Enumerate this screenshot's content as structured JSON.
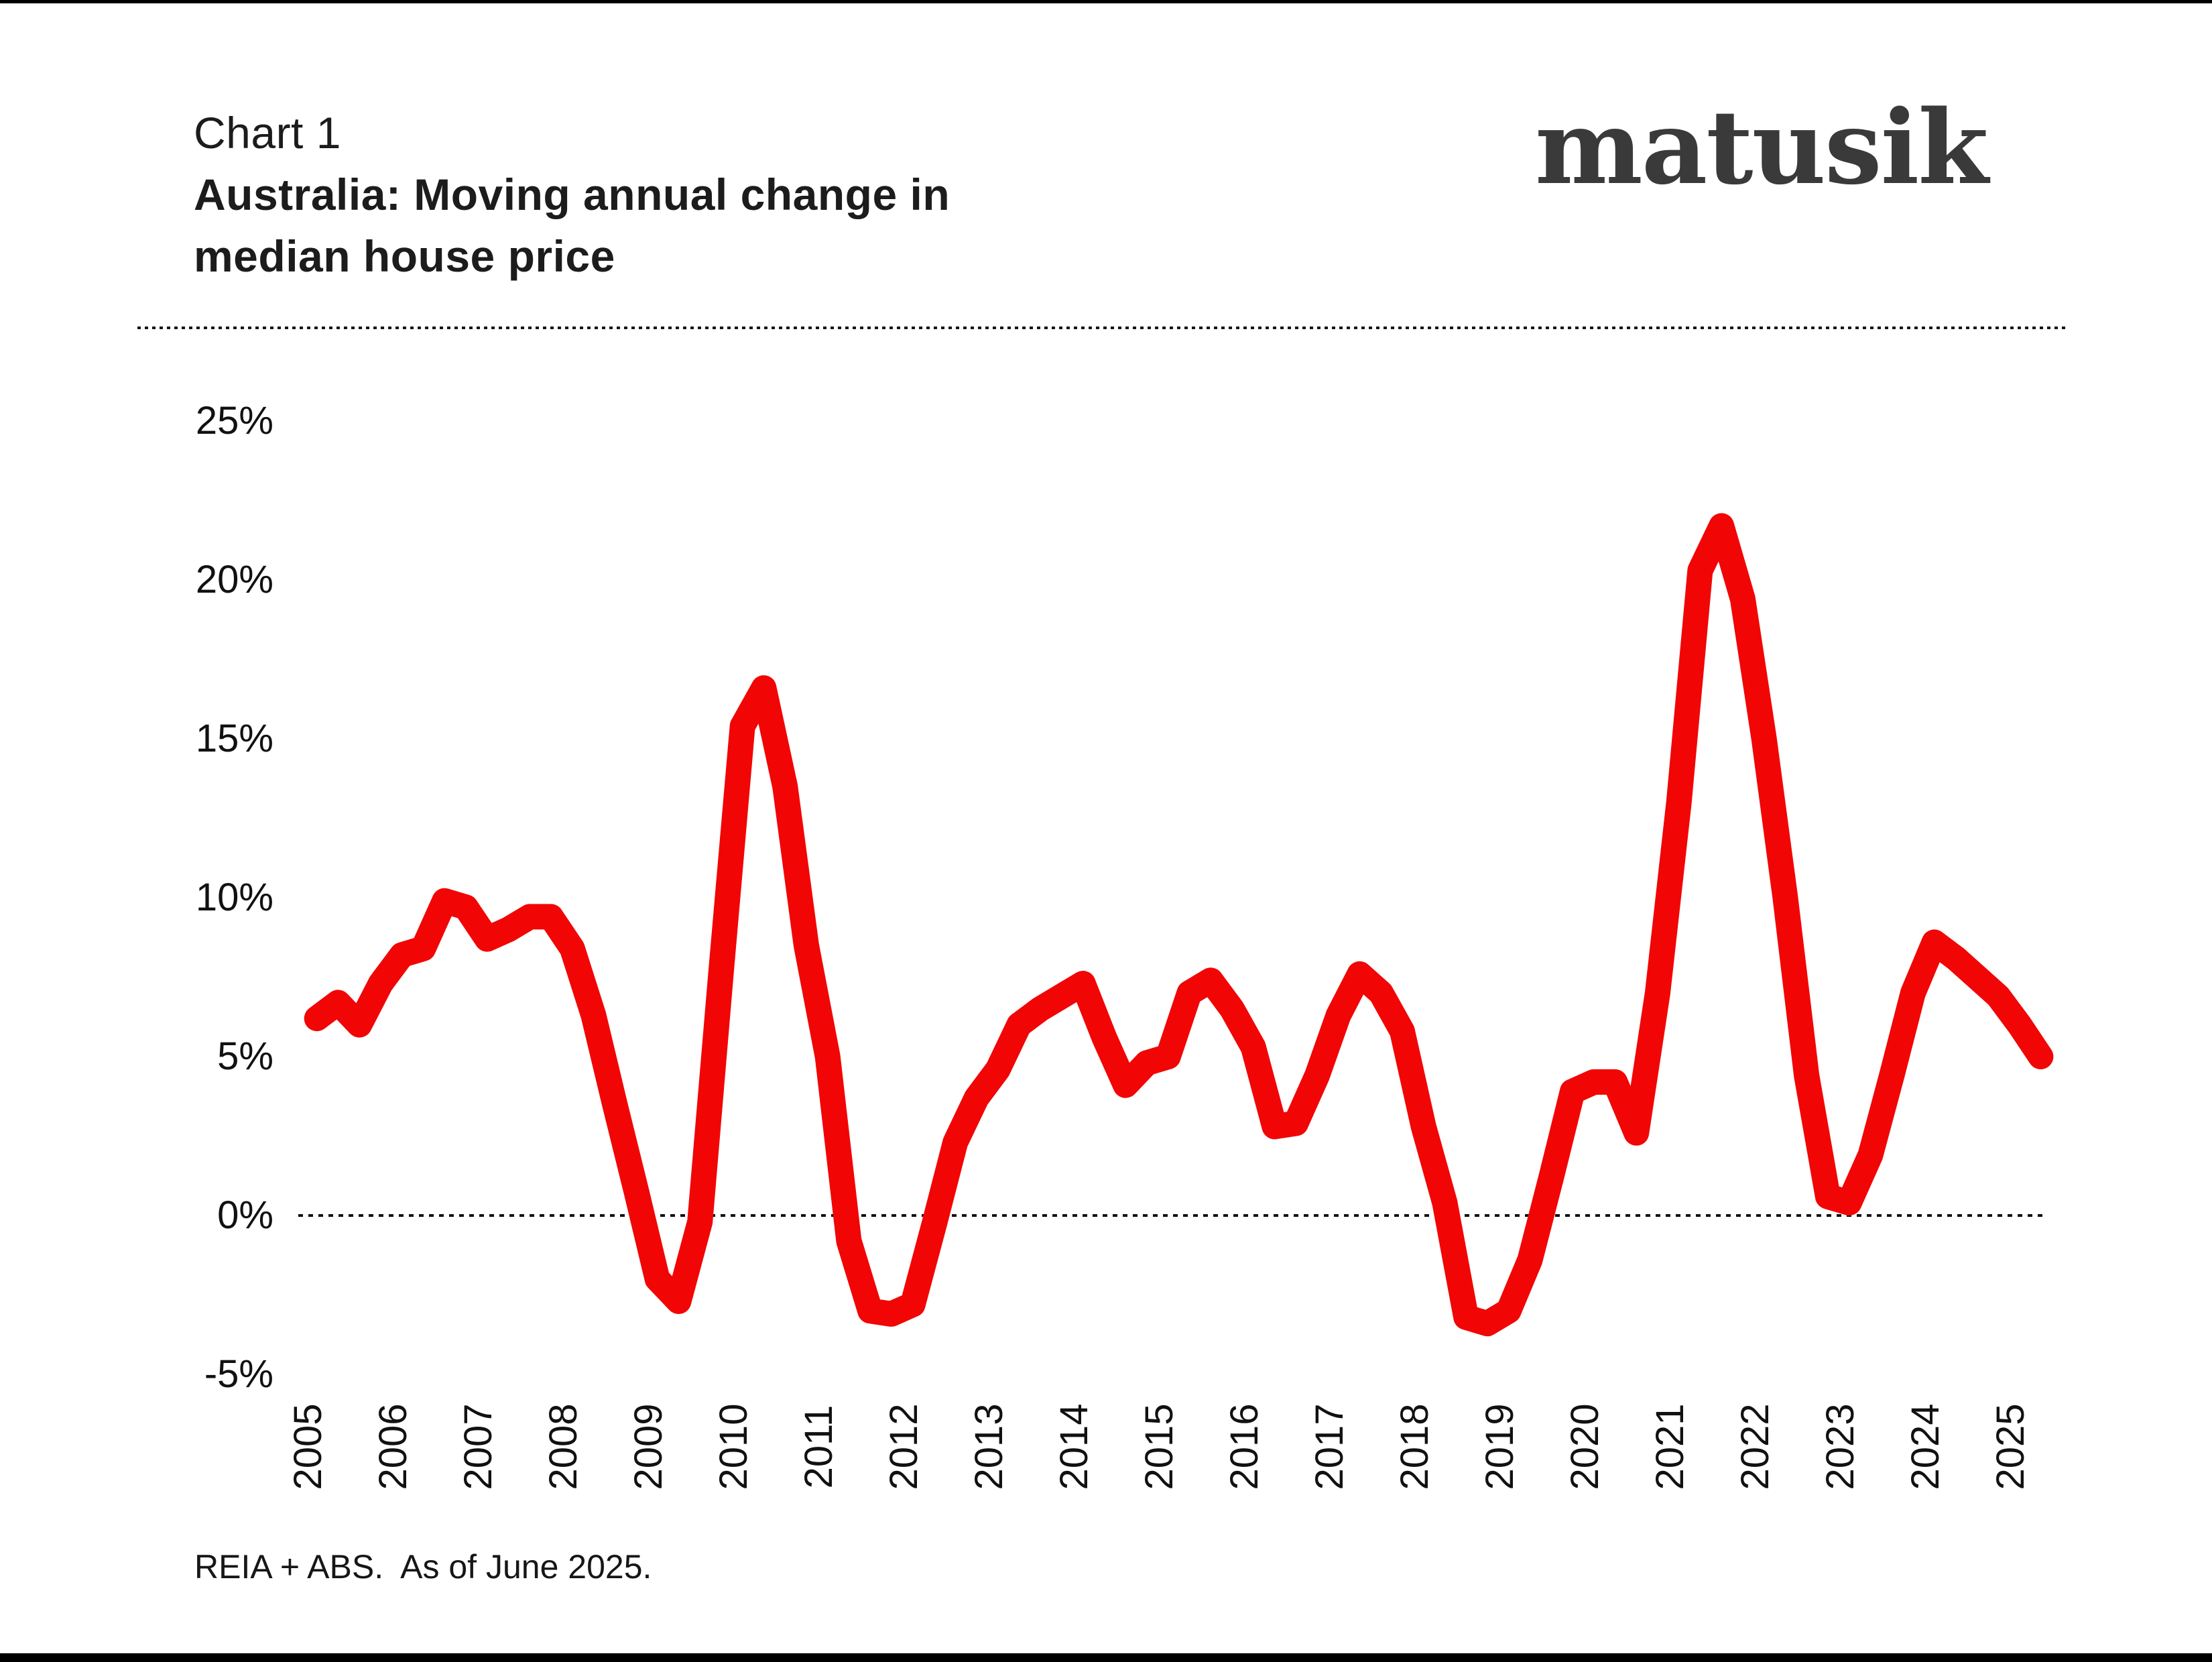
{
  "header": {
    "chart_label": "Chart 1",
    "title_line1": "Australia: Moving annual change in",
    "title_line2": "median house price",
    "logo_text": "matusik"
  },
  "footer": {
    "source_note": "REIA + ABS.  As of June 2025."
  },
  "colors": {
    "line_red": "#f20505",
    "text_dark": "#1b1b1b",
    "logo_gray": "#3a3a3a"
  },
  "chart_data": {
    "type": "line",
    "title": "Australia: Moving annual change in median house price",
    "series_name": "Moving annual change in median house price",
    "unit": "%",
    "frequency": "quarterly",
    "start_period": "2005-Q1",
    "end_period": "2025-Q2",
    "x_tick_labels": [
      "2005",
      "2006",
      "2007",
      "2008",
      "2009",
      "2010",
      "2011",
      "2012",
      "2013",
      "2014",
      "2015",
      "2016",
      "2017",
      "2018",
      "2019",
      "2020",
      "2021",
      "2022",
      "2023",
      "2024",
      "2025"
    ],
    "y_tick_labels": [
      "25%",
      "20%",
      "15%",
      "10%",
      "5%",
      "0%",
      "-5%"
    ],
    "ylim": [
      -5,
      25
    ],
    "grid": false,
    "zero_line": "dotted",
    "values": [
      6.2,
      6.7,
      6.0,
      7.3,
      8.2,
      8.4,
      9.9,
      9.7,
      8.7,
      9.0,
      9.4,
      9.4,
      8.4,
      6.3,
      3.5,
      0.8,
      -2.0,
      -2.7,
      -0.2,
      7.7,
      15.4,
      16.6,
      13.5,
      8.5,
      5.0,
      -0.8,
      -3.0,
      -3.1,
      -2.8,
      -0.3,
      2.3,
      3.7,
      4.6,
      6.0,
      6.5,
      6.9,
      7.3,
      5.6,
      4.1,
      4.8,
      5.0,
      7.0,
      7.4,
      6.5,
      5.3,
      2.8,
      2.9,
      4.4,
      6.3,
      7.6,
      7.0,
      5.8,
      2.8,
      0.4,
      -3.2,
      -3.4,
      -3.0,
      -1.4,
      1.2,
      3.9,
      4.2,
      4.2,
      2.6,
      7.0,
      13.0,
      20.3,
      21.7,
      19.4,
      15.0,
      10.0,
      4.4,
      0.6,
      0.4,
      1.9,
      4.4,
      7.0,
      8.6,
      8.1,
      7.5,
      6.9,
      6.0,
      5.0
    ]
  }
}
